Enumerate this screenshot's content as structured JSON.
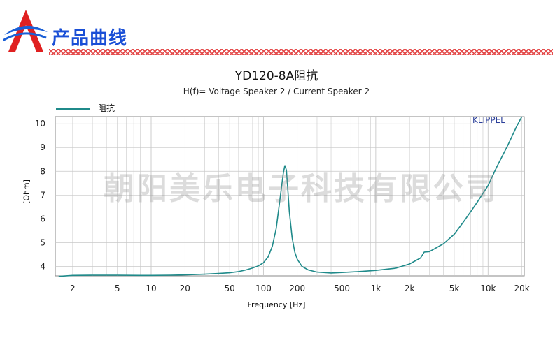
{
  "header": {
    "title": "产品曲线"
  },
  "watermark": "朝阳美乐电子科技有限公司",
  "klippel": "KLIPPEL",
  "colors": {
    "curve": "#1f8a8a",
    "header_text": "#1a4fd6",
    "logo_blue": "#1a5fd6",
    "logo_red": "#e02020",
    "grid": "#c8c8c8"
  },
  "chart_data": {
    "type": "line",
    "title": "YD120-8A阻抗",
    "subtitle": "H(f)= Voltage Speaker 2 / Current Speaker 2",
    "xlabel": "Frequency [Hz]",
    "ylabel": "[Ohm]",
    "xscale": "log",
    "xlim": [
      1.4,
      21000
    ],
    "ylim": [
      3.6,
      10.3
    ],
    "grid": true,
    "legend": {
      "position": "top-left",
      "entries": [
        "阻抗"
      ]
    },
    "x_ticks": [
      {
        "value": 2,
        "label": "2"
      },
      {
        "value": 5,
        "label": "5"
      },
      {
        "value": 10,
        "label": "10"
      },
      {
        "value": 20,
        "label": "20"
      },
      {
        "value": 50,
        "label": "50"
      },
      {
        "value": 100,
        "label": "100"
      },
      {
        "value": 200,
        "label": "200"
      },
      {
        "value": 500,
        "label": "500"
      },
      {
        "value": 1000,
        "label": "1k"
      },
      {
        "value": 2000,
        "label": "2k"
      },
      {
        "value": 5000,
        "label": "5k"
      },
      {
        "value": 10000,
        "label": "10k"
      },
      {
        "value": 20000,
        "label": "20k"
      }
    ],
    "y_ticks": [
      4,
      5,
      6,
      7,
      8,
      9,
      10
    ],
    "series": [
      {
        "name": "阻抗",
        "x": [
          1.5,
          2,
          3,
          5,
          8,
          10,
          15,
          20,
          30,
          40,
          50,
          60,
          70,
          80,
          90,
          100,
          110,
          120,
          130,
          140,
          150,
          155,
          160,
          165,
          170,
          180,
          190,
          200,
          220,
          250,
          300,
          400,
          500,
          700,
          1000,
          1500,
          2000,
          2500,
          2700,
          3000,
          4000,
          5000,
          6000,
          7000,
          8000,
          10000,
          12000,
          15000,
          18000,
          20000
        ],
        "y": [
          3.58,
          3.62,
          3.63,
          3.63,
          3.62,
          3.62,
          3.63,
          3.64,
          3.67,
          3.7,
          3.73,
          3.78,
          3.85,
          3.93,
          4.02,
          4.15,
          4.4,
          4.85,
          5.6,
          6.8,
          7.9,
          8.25,
          8.05,
          7.2,
          6.3,
          5.2,
          4.6,
          4.3,
          4.0,
          3.85,
          3.76,
          3.72,
          3.74,
          3.78,
          3.83,
          3.92,
          4.1,
          4.35,
          4.6,
          4.62,
          4.95,
          5.35,
          5.85,
          6.3,
          6.7,
          7.4,
          8.2,
          9.1,
          9.9,
          10.3
        ]
      }
    ]
  }
}
